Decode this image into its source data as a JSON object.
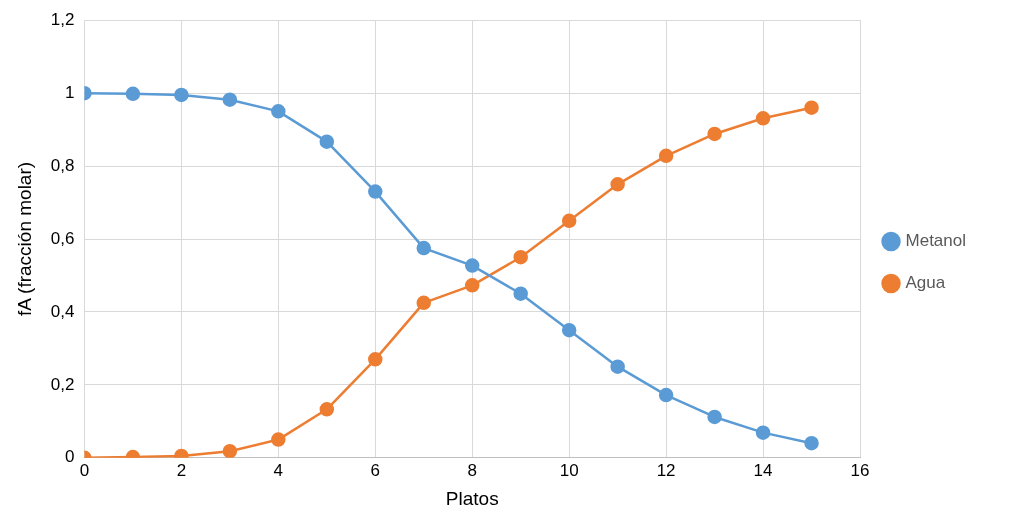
{
  "chart_data": {
    "type": "line",
    "xlabel": "Platos",
    "ylabel": "fA (fracción molar)",
    "x": [
      0,
      1,
      2,
      3,
      4,
      5,
      6,
      7,
      8,
      9,
      10,
      11,
      12,
      13,
      14,
      15
    ],
    "series": [
      {
        "name": "Metanol",
        "color": "#5b9bd5",
        "values": [
          1.0,
          0.998,
          0.995,
          0.982,
          0.95,
          0.867,
          0.73,
          0.575,
          0.527,
          0.45,
          0.35,
          0.25,
          0.172,
          0.112,
          0.069,
          0.04
        ]
      },
      {
        "name": "Agua",
        "color": "#ed7d31",
        "values": [
          0.0,
          0.002,
          0.005,
          0.018,
          0.05,
          0.133,
          0.27,
          0.425,
          0.473,
          0.55,
          0.65,
          0.75,
          0.828,
          0.888,
          0.931,
          0.96
        ]
      }
    ],
    "xlim": [
      0,
      16
    ],
    "xticks": [
      0,
      2,
      4,
      6,
      8,
      10,
      12,
      14,
      16
    ],
    "ylim": [
      0,
      1.2
    ],
    "yticks": [
      0,
      {
        "value": 0.2,
        "label": "0,2"
      },
      {
        "value": 0.4,
        "label": "0,4"
      },
      {
        "value": 0.6,
        "label": "0,6"
      },
      {
        "value": 0.8,
        "label": "0,8"
      },
      1,
      {
        "value": 1.2,
        "label": "1,2"
      }
    ],
    "grid": true,
    "legend": "right",
    "marker": "circle",
    "line_style": "solid"
  }
}
